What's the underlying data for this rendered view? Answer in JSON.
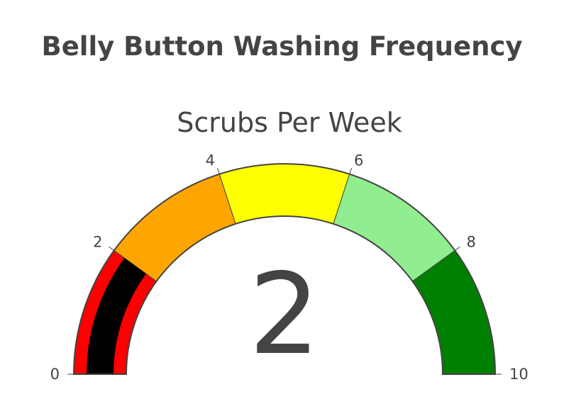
{
  "chart_data": {
    "type": "gauge",
    "title": "Belly Button Washing Frequency",
    "gauge_title": "Scrubs Per Week",
    "value": 2,
    "range": [
      0,
      10
    ],
    "tick_values": [
      0,
      2,
      4,
      6,
      8,
      10
    ],
    "tick_labels": [
      "0",
      "2",
      "4",
      "6",
      "8",
      "10"
    ],
    "steps": [
      {
        "range": [
          0,
          2
        ],
        "color": "#ff0000"
      },
      {
        "range": [
          2,
          4
        ],
        "color": "#ffa500"
      },
      {
        "range": [
          4,
          6
        ],
        "color": "#ffff00"
      },
      {
        "range": [
          6,
          8
        ],
        "color": "#90ee90"
      },
      {
        "range": [
          8,
          10
        ],
        "color": "#008000"
      }
    ],
    "bar_color": "#000000",
    "outline_color": "#444444"
  }
}
